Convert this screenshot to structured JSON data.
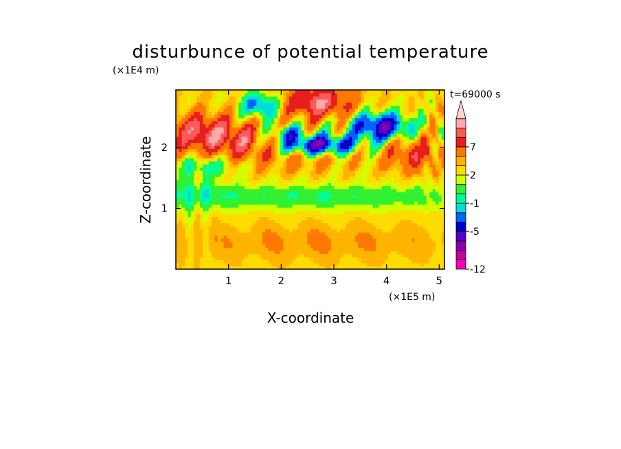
{
  "chart_data": {
    "type": "heatmap",
    "title": "disturbunce of potential temperature",
    "time_label": "t=69000 s",
    "xlabel": "X-coordinate",
    "ylabel": "Z-coordinate",
    "x_unit": "(×1E5 m)",
    "y_unit": "(×1E4 m)",
    "x_ticks": [
      1,
      2,
      3,
      4,
      5
    ],
    "y_ticks": [
      1,
      2
    ],
    "xlim": [
      0,
      5.1
    ],
    "ylim": [
      0,
      2.95
    ],
    "colorbar": {
      "levels": [
        -12,
        -11,
        -9,
        -7,
        -5,
        -3,
        -2,
        -1,
        0,
        1,
        2,
        3,
        5,
        7,
        9,
        11
      ],
      "tick_labels": [
        "-12",
        "-5",
        "-1",
        "2",
        "7"
      ],
      "tick_values": [
        -12,
        -5,
        -1,
        2,
        7
      ],
      "colors": [
        "#ff00b4",
        "#c8009b",
        "#8c00b4",
        "#5a00c8",
        "#0000c8",
        "#0064ff",
        "#00dcdc",
        "#00ff96",
        "#32f032",
        "#d2ff00",
        "#ffdc00",
        "#ffb400",
        "#ff7800",
        "#e61e1e",
        "#ff5a5a",
        "#ffaaaa",
        "#ffd2d2"
      ],
      "extend_max": true
    },
    "field_description": "potential temperature disturbance contours",
    "features": [
      {
        "x": [
          2.1,
          3.4
        ],
        "z": [
          1.9,
          2.3
        ],
        "value": -9
      },
      {
        "x": [
          3.5,
          4.6
        ],
        "z": [
          2.1,
          2.7
        ],
        "value": -9
      },
      {
        "x": [
          1.2,
          1.9
        ],
        "z": [
          2.5,
          2.9
        ],
        "value": -5
      },
      {
        "x": [
          2.2,
          3.2
        ],
        "z": [
          2.5,
          2.95
        ],
        "value": 5
      },
      {
        "x": [
          0.0,
          1.0
        ],
        "z": [
          1.9,
          2.5
        ],
        "value": 5
      },
      {
        "x": [
          0.0,
          5.1
        ],
        "z": [
          0.9,
          1.5
        ],
        "value": 0
      },
      {
        "x": [
          0.0,
          5.1
        ],
        "z": [
          0.0,
          0.9
        ],
        "value": 2
      }
    ]
  }
}
